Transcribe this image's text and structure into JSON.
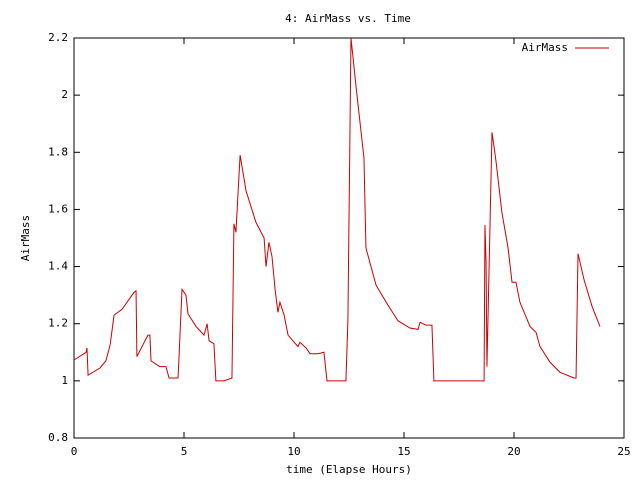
{
  "chart_data": {
    "type": "line",
    "title": "4: AirMass vs. Time",
    "xlabel": "time (Elapse Hours)",
    "ylabel": "AirMass",
    "x": [
      0,
      0.55,
      0.59,
      0.64,
      1.18,
      1.45,
      1.64,
      1.82,
      2.18,
      2.73,
      2.82,
      2.86,
      3.36,
      3.45,
      3.5,
      3.9,
      4.18,
      4.32,
      4.73,
      4.91,
      5.09,
      5.18,
      5.55,
      5.91,
      6.05,
      6.14,
      6.36,
      6.45,
      6.82,
      7.18,
      7.27,
      7.36,
      7.55,
      7.82,
      8.27,
      8.64,
      8.73,
      8.86,
      9.0,
      9.14,
      9.27,
      9.36,
      9.55,
      9.73,
      10.18,
      10.27,
      10.55,
      10.73,
      11.09,
      11.36,
      11.5,
      12.36,
      12.45,
      12.59,
      12.82,
      13.18,
      13.27,
      13.73,
      14.27,
      14.73,
      15.27,
      15.64,
      15.73,
      16.0,
      16.27,
      16.36,
      18.64,
      18.68,
      18.73,
      18.77,
      18.82,
      19.0,
      19.18,
      19.45,
      19.73,
      19.91,
      20.09,
      20.27,
      20.73,
      21.0,
      21.18,
      21.64,
      22.09,
      22.73,
      22.82,
      22.91,
      23.18,
      23.55,
      23.91
    ],
    "series": [
      {
        "name": "AirMass",
        "color": "#cc0000",
        "values": [
          1.073,
          1.1,
          1.115,
          1.02,
          1.045,
          1.07,
          1.125,
          1.23,
          1.25,
          1.31,
          1.315,
          1.085,
          1.16,
          1.16,
          1.07,
          1.05,
          1.05,
          1.01,
          1.01,
          1.32,
          1.3,
          1.235,
          1.19,
          1.16,
          1.2,
          1.14,
          1.13,
          1.0,
          1.0,
          1.01,
          1.55,
          1.52,
          1.79,
          1.665,
          1.555,
          1.5,
          1.4,
          1.485,
          1.435,
          1.32,
          1.24,
          1.275,
          1.23,
          1.16,
          1.12,
          1.135,
          1.115,
          1.095,
          1.095,
          1.1,
          1.0,
          1.0,
          1.21,
          2.2,
          2.03,
          1.78,
          1.465,
          1.335,
          1.265,
          1.21,
          1.185,
          1.18,
          1.205,
          1.195,
          1.195,
          1.0,
          1.0,
          1.545,
          1.415,
          1.05,
          1.225,
          1.87,
          1.77,
          1.59,
          1.465,
          1.345,
          1.345,
          1.275,
          1.19,
          1.17,
          1.12,
          1.065,
          1.03,
          1.01,
          1.01,
          1.445,
          1.355,
          1.26,
          1.19
        ]
      }
    ],
    "xlim": [
      0,
      25
    ],
    "xticks": [
      0,
      5,
      10,
      15,
      20,
      25
    ],
    "ylim": [
      0.8,
      2.2
    ],
    "yticks": [
      {
        "value": 0.8,
        "label": "0.8"
      },
      1,
      {
        "value": 1.2,
        "label": "1.2"
      },
      {
        "value": 1.4,
        "label": "1.4"
      },
      {
        "value": 1.6,
        "label": "1.6"
      },
      {
        "value": 1.8,
        "label": "1.8"
      },
      2,
      {
        "value": 2.2,
        "label": "2.2"
      }
    ],
    "legend": "top-right"
  }
}
